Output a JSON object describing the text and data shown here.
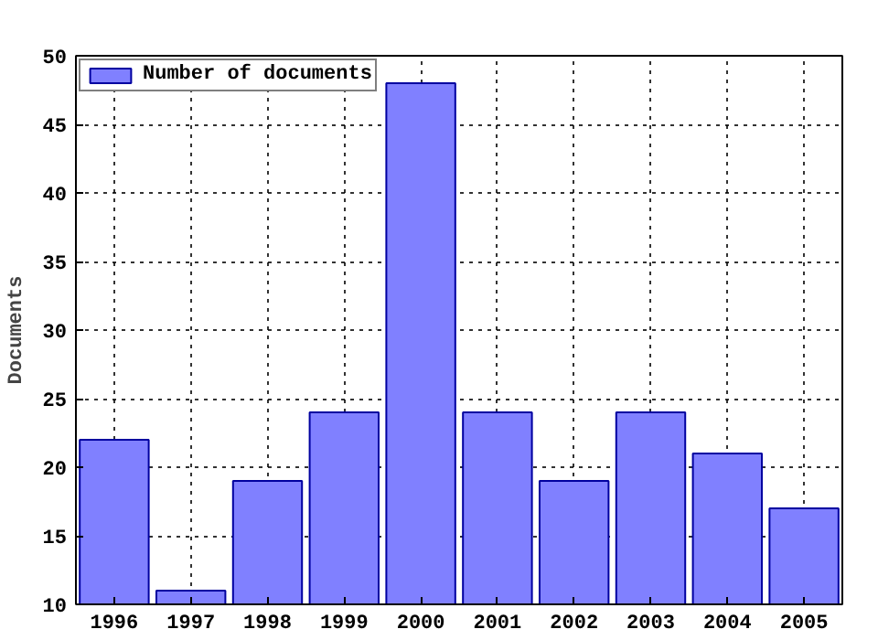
{
  "chart_data": {
    "type": "bar",
    "ylabel": "Documents",
    "x": [
      1996,
      1997,
      1998,
      1999,
      2000,
      2001,
      2002,
      2003,
      2004,
      2005
    ],
    "series": [
      {
        "name": "Number of documents",
        "color": "#8080ff",
        "values": [
          22,
          11,
          19,
          24,
          48,
          24,
          19,
          24,
          21,
          17
        ]
      }
    ],
    "xlim": [
      1995.5,
      2005.5
    ],
    "xticks": [
      1996,
      1997,
      1998,
      1999,
      2000,
      2001,
      2002,
      2003,
      2004,
      2005
    ],
    "ylim": [
      10,
      50
    ],
    "yticks": [
      10,
      15,
      20,
      25,
      30,
      35,
      40,
      45,
      50
    ],
    "grid": true,
    "legend": "top left"
  }
}
